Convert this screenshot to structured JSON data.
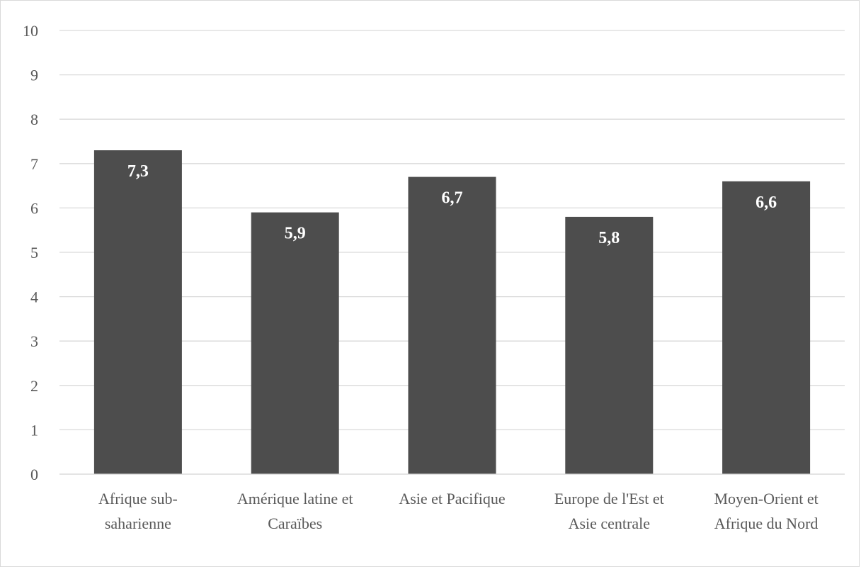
{
  "chart_data": {
    "type": "bar",
    "categories": [
      [
        "Afrique sub-",
        "saharienne"
      ],
      [
        "Amérique latine et",
        "Caraïbes"
      ],
      [
        "Asie et Pacifique"
      ],
      [
        "Europe de l'Est et",
        "Asie centrale"
      ],
      [
        "Moyen-Orient et",
        "Afrique du Nord"
      ]
    ],
    "values": [
      7.3,
      5.9,
      6.7,
      5.8,
      6.6
    ],
    "data_labels": [
      "7,3",
      "5,9",
      "6,7",
      "5,8",
      "6,6"
    ],
    "ylim": [
      0,
      10
    ],
    "yticks": [
      "0",
      "1",
      "2",
      "3",
      "4",
      "5",
      "6",
      "7",
      "8",
      "9",
      "10"
    ],
    "grid": true,
    "legend": "none",
    "colors": {
      "bar": "#4d4d4d",
      "grid": "#d9d9d9",
      "tick_text": "#595959",
      "data_label_text": "#ffffff"
    }
  }
}
